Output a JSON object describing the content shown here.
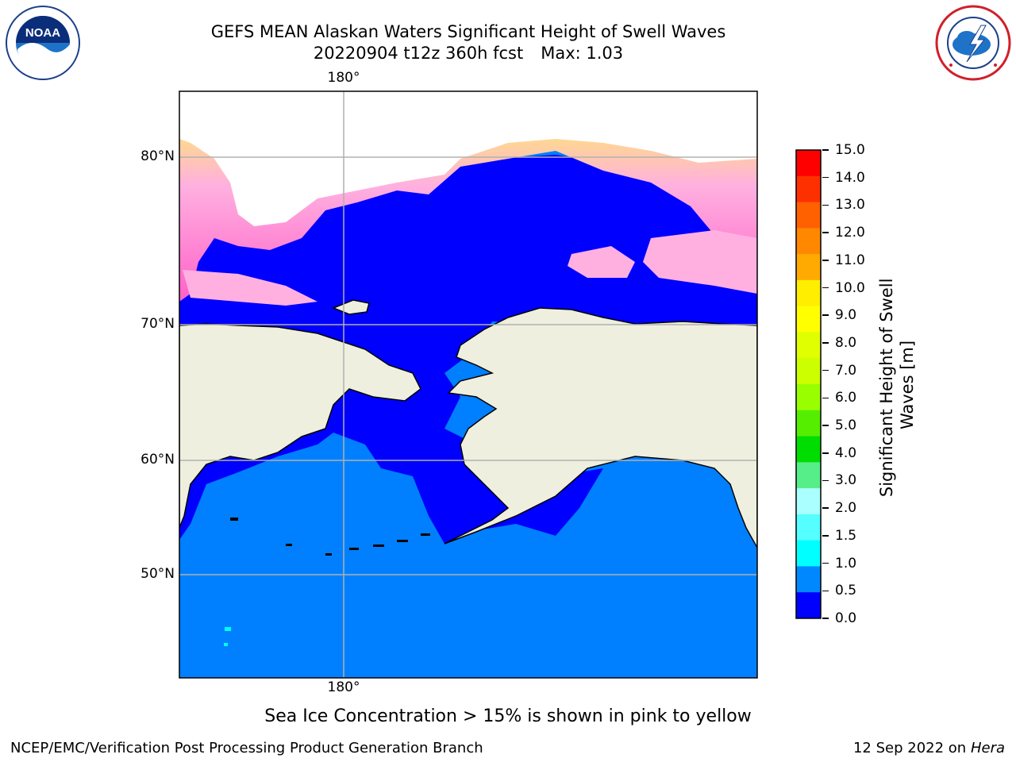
{
  "title": {
    "line1": "GEFS MEAN Alaskan Waters Significant Height of Swell Waves",
    "line2_run": "20220904 t12z 360h fcst",
    "line2_max": "Max: 1.03"
  },
  "map": {
    "lon_labels": {
      "top": "180°",
      "bottom": "180°"
    },
    "lat_labels": [
      "80°N",
      "70°N",
      "60°N",
      "50°N"
    ],
    "colors": {
      "ocean": "#0080ff",
      "low_swell": "#0000ff",
      "land": "#efefdf",
      "ice_pink": "#ff80d0",
      "ice_yellow": "#ffff40",
      "grid": "#b0b0b0"
    }
  },
  "colorbar": {
    "title": "Significant Height of Swell Waves [m]",
    "ticks": [
      "15.0",
      "14.0",
      "13.0",
      "12.0",
      "11.0",
      "10.0",
      "9.0",
      "8.0",
      "7.0",
      "6.0",
      "5.0",
      "4.0",
      "3.0",
      "2.0",
      "1.5",
      "1.0",
      "0.5",
      "0.0"
    ],
    "bands": [
      "#ff0000",
      "#ff3000",
      "#ff6000",
      "#ff8800",
      "#ffaa00",
      "#ffee00",
      "#ffff00",
      "#e0ff00",
      "#ccff00",
      "#99ff00",
      "#55ee00",
      "#00dd00",
      "#55ee88",
      "#aaffff",
      "#55ffff",
      "#00ffff",
      "#0088ff",
      "#0000ff"
    ]
  },
  "caption": "Sea Ice Concentration > 15% is shown in pink to yellow",
  "footer": {
    "left": "NCEP/EMC/Verification Post Processing Product Generation Branch",
    "right_date": "12 Sep 2022 on",
    "right_host": "Hera"
  },
  "logos": {
    "left": "NOAA",
    "right": "NATIONAL WEATHER SERVICE"
  }
}
